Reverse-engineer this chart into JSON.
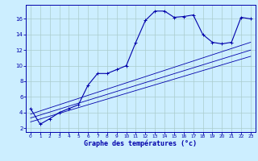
{
  "xlabel": "Graphe des températures (°c)",
  "bg_color": "#cceeff",
  "grid_color": "#aacccc",
  "line_color": "#0000aa",
  "hours": [
    0,
    1,
    2,
    3,
    4,
    5,
    6,
    7,
    8,
    9,
    10,
    11,
    12,
    13,
    14,
    15,
    16,
    17,
    18,
    19,
    20,
    21,
    22,
    23
  ],
  "temps": [
    4.5,
    2.5,
    3.2,
    4.0,
    4.5,
    5.0,
    7.5,
    9.0,
    9.0,
    9.5,
    10.0,
    13.0,
    15.8,
    17.0,
    17.0,
    16.2,
    16.3,
    16.5,
    14.0,
    13.0,
    12.8,
    13.0,
    16.2,
    16.0
  ],
  "ref_lines": [
    {
      "x": [
        0,
        23
      ],
      "y": [
        2.8,
        11.2
      ]
    },
    {
      "x": [
        0,
        23
      ],
      "y": [
        3.3,
        12.0
      ]
    },
    {
      "x": [
        0,
        23
      ],
      "y": [
        3.8,
        13.0
      ]
    }
  ],
  "ylim": [
    1.5,
    17.8
  ],
  "xlim": [
    -0.5,
    23.5
  ],
  "yticks": [
    2,
    4,
    6,
    8,
    10,
    12,
    14,
    16
  ],
  "xticks": [
    0,
    1,
    2,
    3,
    4,
    5,
    6,
    7,
    8,
    9,
    10,
    11,
    12,
    13,
    14,
    15,
    16,
    17,
    18,
    19,
    20,
    21,
    22,
    23
  ]
}
